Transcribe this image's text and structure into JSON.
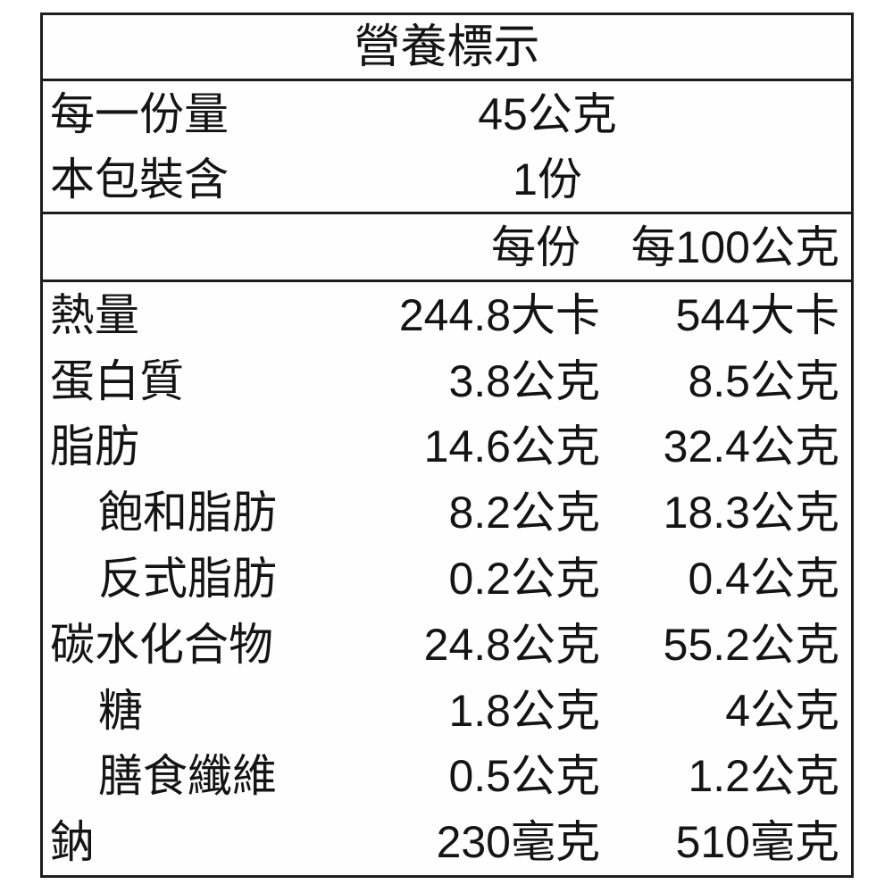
{
  "nutrition_label": {
    "title": "營養標示",
    "serving_info": [
      {
        "name": "每一份量",
        "value": "45公克"
      },
      {
        "name": "本包裝含",
        "value": "1份"
      }
    ],
    "columns": {
      "per_serving": "每份",
      "per_100g": "每100公克"
    },
    "nutrients": [
      {
        "name": "熱量",
        "indent": false,
        "per_serving": "244.8大卡",
        "per_100g": "544大卡"
      },
      {
        "name": "蛋白質",
        "indent": false,
        "per_serving": "3.8公克",
        "per_100g": "8.5公克"
      },
      {
        "name": "脂肪",
        "indent": false,
        "per_serving": "14.6公克",
        "per_100g": "32.4公克"
      },
      {
        "name": "飽和脂肪",
        "indent": true,
        "per_serving": "8.2公克",
        "per_100g": "18.3公克"
      },
      {
        "name": "反式脂肪",
        "indent": true,
        "per_serving": "0.2公克",
        "per_100g": "0.4公克"
      },
      {
        "name": "碳水化合物",
        "indent": false,
        "per_serving": "24.8公克",
        "per_100g": "55.2公克"
      },
      {
        "name": "糖",
        "indent": true,
        "per_serving": "1.8公克",
        "per_100g": "4公克"
      },
      {
        "name": "膳食纖維",
        "indent": true,
        "per_serving": "0.5公克",
        "per_100g": "1.2公克"
      },
      {
        "name": "鈉",
        "indent": false,
        "per_serving": "230毫克",
        "per_100g": "510毫克"
      }
    ],
    "colors": {
      "border": "#1d1d1d",
      "text": "#141414",
      "background": "#ffffff"
    }
  }
}
